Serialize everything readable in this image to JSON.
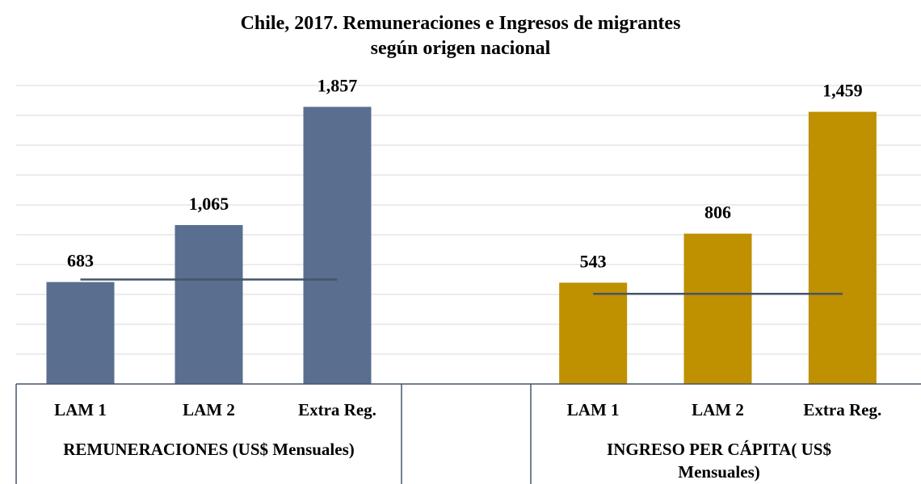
{
  "title": "Chile, 2017. Remuneraciones  e Ingresos  de migrantes según origen nacional",
  "chart_data": [
    {
      "type": "bar",
      "group_label": "REMUNERACIONES (US$ Mensuales)",
      "categories": [
        "LAM 1",
        "LAM 2",
        "Extra Reg."
      ],
      "values": [
        683,
        1065,
        1857
      ],
      "value_labels": [
        "683",
        "1,065",
        "1,857"
      ],
      "color": "#5a6f8f",
      "reference_line": 700,
      "reference_color": "#44546a",
      "ylim": [
        0,
        2000
      ],
      "yticks": [
        0,
        200,
        400,
        600,
        800,
        1000,
        1200,
        1400,
        1600,
        1800,
        2000
      ],
      "grid": true
    },
    {
      "type": "bar",
      "group_label": "INGRESO PER CÁPITA( US$ Mensuales)",
      "categories": [
        "LAM 1",
        "LAM 2",
        "Extra Reg."
      ],
      "values": [
        543,
        806,
        1459
      ],
      "value_labels": [
        "543",
        "806",
        "1,459"
      ],
      "color": "#bf9000",
      "reference_line": 483,
      "reference_color": "#44546a",
      "ylim": [
        0,
        1600
      ],
      "grid": false
    }
  ]
}
